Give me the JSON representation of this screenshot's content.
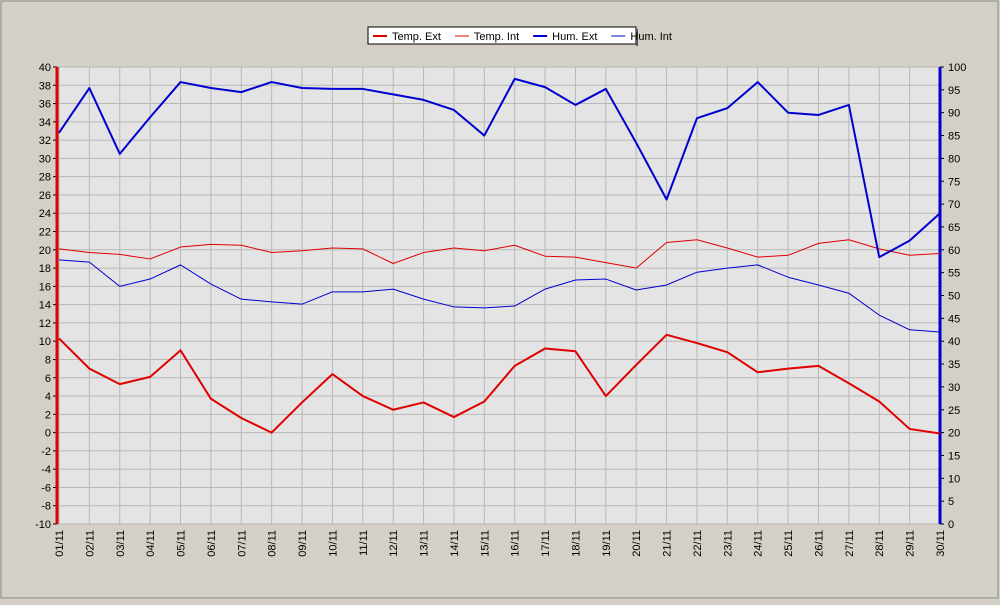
{
  "chart_data": {
    "type": "line",
    "categories": [
      "01/11",
      "02/11",
      "03/11",
      "04/11",
      "05/11",
      "06/11",
      "07/11",
      "08/11",
      "09/11",
      "10/11",
      "11/11",
      "12/11",
      "13/11",
      "14/11",
      "15/11",
      "16/11",
      "17/11",
      "18/11",
      "19/11",
      "20/11",
      "21/11",
      "22/11",
      "23/11",
      "24/11",
      "25/11",
      "26/11",
      "27/11",
      "28/11",
      "29/11",
      "30/11"
    ],
    "series": [
      {
        "name": "Temp. Ext",
        "color": "#e00000",
        "width": 2,
        "values": [
          10.3,
          7,
          5.3,
          6.1,
          9,
          3.7,
          1.6,
          0,
          3.3,
          6.4,
          4,
          2.5,
          3.3,
          1.7,
          3.4,
          7.3,
          9.2,
          8.9,
          4,
          7.4,
          10.7,
          9.8,
          8.8,
          6.6,
          7,
          7.3,
          5.4,
          3.4,
          0.4,
          -0.1
        ]
      },
      {
        "name": "Temp. Int",
        "color": "#e00000",
        "width": 1,
        "values": [
          20.1,
          19.7,
          19.5,
          19,
          20.3,
          20.6,
          20.5,
          19.7,
          19.9,
          20.2,
          20.1,
          18.5,
          19.7,
          20.2,
          19.9,
          20.5,
          19.3,
          19.2,
          18.6,
          18,
          20.8,
          21.1,
          20.2,
          19.2,
          19.4,
          20.7,
          21.1,
          20.1,
          19.4,
          19.6
        ]
      },
      {
        "name": "Hum. Ext",
        "color": "#0000d0",
        "width": 2,
        "axis": "y2",
        "values": [
          85.6,
          95.4,
          81,
          89,
          96.7,
          95.4,
          94.5,
          96.7,
          95.4,
          95.2,
          95.2,
          94,
          92.8,
          90.6,
          85,
          97.4,
          95.6,
          91.7,
          95.2,
          83.4,
          71,
          88.8,
          91,
          96.7,
          90,
          89.5,
          91.7,
          58.4,
          62,
          68
        ]
      },
      {
        "name": "Hum. Int",
        "color": "#0000d0",
        "width": 1,
        "axis": "y2",
        "values": [
          57.8,
          57.3,
          52,
          53.6,
          56.7,
          52.5,
          49.2,
          48.6,
          48.1,
          50.8,
          50.8,
          51.4,
          49.2,
          47.5,
          47.3,
          47.7,
          51.4,
          53.4,
          53.6,
          51.2,
          52.3,
          55.1,
          56,
          56.7,
          54,
          52.3,
          50.5,
          45.7,
          42.5,
          42
        ]
      }
    ],
    "ylim": [
      -10,
      40
    ],
    "yticks": [
      -10,
      -8,
      -6,
      -4,
      -2,
      0,
      2,
      4,
      6,
      8,
      10,
      12,
      14,
      16,
      18,
      20,
      22,
      24,
      26,
      28,
      30,
      32,
      34,
      36,
      38,
      40
    ],
    "y2lim": [
      0,
      100
    ],
    "y2ticks": [
      0,
      5,
      10,
      15,
      20,
      25,
      30,
      35,
      40,
      45,
      50,
      55,
      60,
      65,
      70,
      75,
      80,
      85,
      90,
      95,
      100
    ],
    "grid": true,
    "legend": "top"
  }
}
